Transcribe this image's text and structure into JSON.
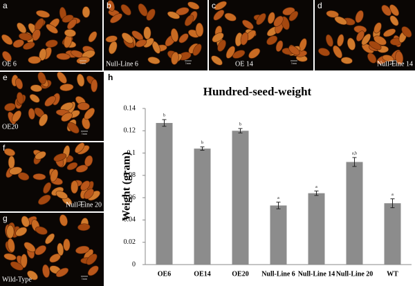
{
  "panels": [
    {
      "letter": "a",
      "label": "OE 6",
      "scale": "1mm"
    },
    {
      "letter": "b",
      "label": "Null-Line 6",
      "scale": "1mm"
    },
    {
      "letter": "c",
      "label": "OE 14",
      "scale": "1mm"
    },
    {
      "letter": "d",
      "label": "Null-Line 14",
      "scale": "1mm"
    },
    {
      "letter": "e",
      "label": "OE20",
      "scale": "1mm"
    },
    {
      "letter": "f",
      "label": "Null-Line 20",
      "scale": "1mm"
    },
    {
      "letter": "g",
      "label": "Wild-Type",
      "scale": "1mm"
    }
  ],
  "chart_letter": "h",
  "chart_data": {
    "type": "bar",
    "title": "Hundred-seed-weight",
    "y_label": "Weight (gram)",
    "categories": [
      "OE6",
      "OE14",
      "OE20",
      "Null-Line 6",
      "Null-Line 14",
      "Null-Line 20",
      "WT"
    ],
    "values": [
      0.127,
      0.104,
      0.12,
      0.053,
      0.064,
      0.092,
      0.055
    ],
    "errors": [
      0.003,
      0.0015,
      0.002,
      0.003,
      0.002,
      0.004,
      0.004
    ],
    "letters": [
      "b",
      "b",
      "b",
      "a",
      "a",
      "a,b",
      "a"
    ],
    "color": "#8c8c8c",
    "ylim": [
      0,
      0.14
    ],
    "yticks": [
      0,
      0.02,
      0.04,
      0.06,
      0.08,
      0.1,
      0.12,
      0.14
    ],
    "grid": false
  }
}
